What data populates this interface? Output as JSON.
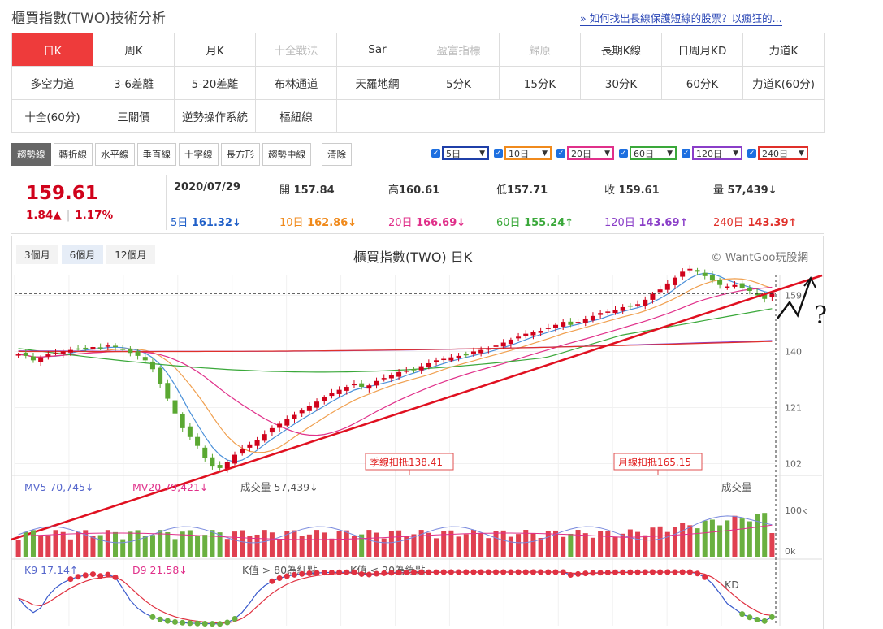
{
  "page_title": "櫃買指數(TWO)技術分析",
  "top_link": "» 如何找出長線保護短線的股票？以瘋狂的...",
  "period_grid": [
    [
      {
        "label": "日K",
        "state": "active"
      },
      {
        "label": "周K"
      },
      {
        "label": "月K"
      },
      {
        "label": "十全戰法",
        "state": "disabled"
      },
      {
        "label": "Sar"
      },
      {
        "label": "盈富指標",
        "state": "disabled"
      },
      {
        "label": "歸原",
        "state": "disabled"
      },
      {
        "label": "長期K線"
      },
      {
        "label": "日周月KD"
      },
      {
        "label": "力道K"
      }
    ],
    [
      {
        "label": "多空力道"
      },
      {
        "label": "3-6差離"
      },
      {
        "label": "5-20差離"
      },
      {
        "label": "布林通道"
      },
      {
        "label": "天羅地網"
      },
      {
        "label": "5分K"
      },
      {
        "label": "15分K"
      },
      {
        "label": "30分K"
      },
      {
        "label": "60分K"
      },
      {
        "label": "力道K(60分)"
      }
    ],
    [
      {
        "label": "十全(60分)"
      },
      {
        "label": "三關價"
      },
      {
        "label": "逆勢操作系統"
      },
      {
        "label": "樞紐線"
      }
    ]
  ],
  "draw_tools": [
    "趨勢線",
    "轉折線",
    "水平線",
    "垂直線",
    "十字線",
    "長方形",
    "趨勢中線"
  ],
  "clear_label": "清除",
  "ma_selectors": [
    {
      "label": "5日",
      "color": "#1f3fa8"
    },
    {
      "label": "10日",
      "color": "#f08a1c"
    },
    {
      "label": "20日",
      "color": "#e0308a"
    },
    {
      "label": "60日",
      "color": "#3aa83a"
    },
    {
      "label": "120日",
      "color": "#8a3ec8"
    },
    {
      "label": "240日",
      "color": "#e0302a"
    }
  ],
  "quote": {
    "price": "159.61",
    "change": "1.84▲",
    "change_pct": "1.17%",
    "date": "2020/07/29",
    "open_label": "開",
    "open": "157.84",
    "high_label": "高",
    "high": "160.61",
    "low_label": "低",
    "low": "157.71",
    "close_label": "收",
    "close": "159.61",
    "vol_label": "量",
    "vol": "57,439↓",
    "ma": [
      {
        "label": "5日",
        "value": "161.32↓",
        "color": "#1f5fc8"
      },
      {
        "label": "10日",
        "value": "162.86↓",
        "color": "#f08a1c"
      },
      {
        "label": "20日",
        "value": "166.69↓",
        "color": "#e0308a"
      },
      {
        "label": "60日",
        "value": "155.24↑",
        "color": "#3aa83a"
      },
      {
        "label": "120日",
        "value": "143.69↑",
        "color": "#8a3ec8"
      },
      {
        "label": "240日",
        "value": "143.39↑",
        "color": "#e0302a"
      }
    ]
  },
  "range_buttons": [
    {
      "label": "3個月"
    },
    {
      "label": "6個月",
      "state": "active"
    },
    {
      "label": "12個月"
    }
  ],
  "chart_title": "櫃買指數(TWO) 日K",
  "credit": "© WantGoo玩股網",
  "y_ticks": [
    "159",
    "140",
    "121",
    "102"
  ],
  "annotations": {
    "quarter": "季線扣抵138.41",
    "month": "月線扣抵165.15",
    "question": "?"
  },
  "volume_panel": {
    "mv5": "MV5 70,745↓",
    "mv20": "MV20 79,421↓",
    "vol": "成交量 57,439↓",
    "label": "成交量",
    "ticks": [
      "100k",
      "0k"
    ]
  },
  "kd_panel": {
    "k": "K9 17.14↑",
    "d": "D9 21.58↓",
    "note1": "K值 > 80為紅點",
    "note2": "K值 < 20為綠點",
    "label": "KD"
  },
  "colors": {
    "up": "#d0021b",
    "down": "#5aa832",
    "accent": "#ee3b3b"
  },
  "chart_data": {
    "type": "candlestick",
    "title": "櫃買指數(TWO) 日K",
    "y_ticks": [
      159,
      140,
      121,
      102
    ],
    "ylim": [
      98,
      166
    ],
    "closes": [
      139,
      138.5,
      137,
      138,
      139,
      139.5,
      140,
      140.5,
      141,
      141.2,
      141.5,
      141,
      142,
      141.5,
      140.5,
      139.5,
      138.5,
      137,
      134,
      129,
      124,
      119,
      114,
      111,
      108,
      104,
      101,
      100.5,
      102.5,
      105,
      107,
      108.5,
      110,
      112,
      114,
      115.5,
      117,
      118.5,
      120,
      121.5,
      123,
      124.5,
      126,
      127,
      128,
      129,
      128,
      128.5,
      130,
      131,
      132,
      133,
      133.5,
      134,
      135,
      136,
      137,
      137.5,
      138,
      138.5,
      139,
      140,
      140.5,
      141,
      142,
      143,
      144,
      145,
      146,
      146.5,
      147,
      148,
      149,
      150,
      149,
      150,
      151,
      152,
      153,
      153.5,
      154,
      155,
      155.5,
      156,
      157.5,
      159.5,
      161,
      163,
      165,
      167,
      168,
      167,
      165.5,
      164,
      162.5,
      162,
      162.5,
      161.5,
      160.5,
      159,
      157.8,
      159.61
    ],
    "trendline_note": "drawn trendline rising from lower left to upper right"
  }
}
